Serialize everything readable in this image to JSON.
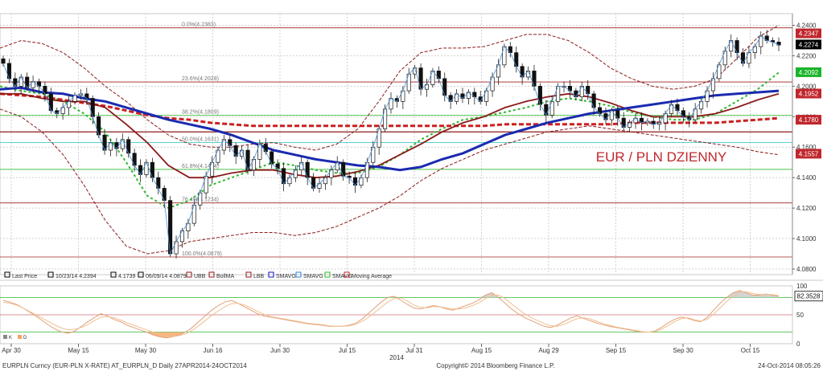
{
  "chart_data": [
    {
      "type": "candlestick",
      "title": "EUR / PLN DZIENNY",
      "ylim": [
        4.08,
        4.245
      ],
      "yticks": [
        4.08,
        4.1,
        4.12,
        4.14,
        4.16,
        4.18,
        4.2,
        4.22,
        4.24
      ],
      "ytick_labels": [
        "4.0800",
        "4.1000",
        "4.1200",
        "4.1400",
        "4.1600",
        "4.1800",
        "4.2000",
        "4.2200",
        "4.2400"
      ],
      "x_labels": [
        "Apr 30",
        "May 15",
        "May 30",
        "Jun 16",
        "Jun 30",
        "Jul 15",
        "Jul 31",
        "Aug 15",
        "Aug 29",
        "Sep 15",
        "Sep 30",
        "Oct 15"
      ],
      "year_label": "2014",
      "fib_levels": [
        {
          "label": "0.0%(4.2383)",
          "value": 4.2383
        },
        {
          "label": "23.6%(4.2028)",
          "value": 4.2028
        },
        {
          "label": "38.2%(4.1809)",
          "value": 4.1809
        },
        {
          "label": "50.0%(4.1631)",
          "value": 4.1631
        },
        {
          "label": "61.8%(4.1454)",
          "value": 4.1454
        },
        {
          "label": "76.4%(4.1234)",
          "value": 4.1234
        },
        {
          "label": "100.0%(4.0879)",
          "value": 4.0879
        }
      ],
      "horizontal_lines": [
        4.17
      ],
      "price_tags": [
        {
          "label": "4.2347",
          "value": 4.2347,
          "color": "#c0272d"
        },
        {
          "label": "4.2274",
          "value": 4.2274,
          "color": "#000000"
        },
        {
          "label": "4.2092",
          "value": 4.2092,
          "color": "#19b42a"
        },
        {
          "label": "4.1952",
          "value": 4.1952,
          "color": "#c0272d"
        },
        {
          "label": "4.1780",
          "value": 4.178,
          "color": "#c0272d"
        },
        {
          "label": "4.1557",
          "value": 4.1557,
          "color": "#c0272d"
        }
      ],
      "closes": [
        4.215,
        4.205,
        4.2,
        4.206,
        4.199,
        4.203,
        4.2,
        4.195,
        4.184,
        4.182,
        4.186,
        4.19,
        4.194,
        4.195,
        4.192,
        4.18,
        4.168,
        4.158,
        4.163,
        4.159,
        4.165,
        4.156,
        4.148,
        4.142,
        4.15,
        4.14,
        4.133,
        4.125,
        4.09,
        4.098,
        4.105,
        4.11,
        4.122,
        4.13,
        4.141,
        4.15,
        4.158,
        4.165,
        4.161,
        4.154,
        4.158,
        4.145,
        4.152,
        4.162,
        4.157,
        4.149,
        4.146,
        4.136,
        4.14,
        4.145,
        4.15,
        4.14,
        4.133,
        4.136,
        4.14,
        4.145,
        4.15,
        4.141,
        4.14,
        4.135,
        4.14,
        4.15,
        4.16,
        4.172,
        4.185,
        4.192,
        4.19,
        4.197,
        4.208,
        4.212,
        4.198,
        4.201,
        4.21,
        4.205,
        4.194,
        4.19,
        4.195,
        4.192,
        4.196,
        4.193,
        4.19,
        4.197,
        4.206,
        4.214,
        4.226,
        4.222,
        4.213,
        4.206,
        4.21,
        4.2,
        4.188,
        4.181,
        4.19,
        4.2,
        4.2,
        4.197,
        4.193,
        4.2,
        4.195,
        4.186,
        4.182,
        4.178,
        4.184,
        4.179,
        4.173,
        4.176,
        4.179,
        4.176,
        4.177,
        4.175,
        4.176,
        4.182,
        4.188,
        4.184,
        4.18,
        4.178,
        4.185,
        4.19,
        4.197,
        4.205,
        4.214,
        4.223,
        4.23,
        4.222,
        4.215,
        4.222,
        4.226,
        4.233,
        4.23,
        4.229,
        4.227
      ],
      "sma_blue": [
        4.198,
        4.199,
        4.196,
        4.195,
        4.192,
        4.19,
        4.186,
        4.182,
        4.178,
        4.175,
        4.172,
        4.168,
        4.163,
        4.158,
        4.155,
        4.152,
        4.15,
        4.148,
        4.147,
        4.145,
        4.147,
        4.152,
        4.156,
        4.162,
        4.168,
        4.172,
        4.176,
        4.179,
        4.182,
        4.184,
        4.186,
        4.188,
        4.19,
        4.192,
        4.194,
        4.195,
        4.196,
        4.197
      ],
      "ma_red": [
        4.195,
        4.195,
        4.192,
        4.19,
        4.19,
        4.186,
        4.175,
        4.163,
        4.148,
        4.14,
        4.14,
        4.143,
        4.145,
        4.145,
        4.142,
        4.14,
        4.141,
        4.144,
        4.148,
        4.155,
        4.162,
        4.17,
        4.176,
        4.18,
        4.186,
        4.19,
        4.193,
        4.195,
        4.193,
        4.189,
        4.184,
        4.18,
        4.18,
        4.18,
        4.182,
        4.186,
        4.191,
        4.195
      ],
      "ma_dashed_red": [
        4.195,
        4.194,
        4.193,
        4.191,
        4.189,
        4.187,
        4.184,
        4.181,
        4.179,
        4.178,
        4.176,
        4.175,
        4.174,
        4.174,
        4.174,
        4.174,
        4.174,
        4.174,
        4.174,
        4.174,
        4.174,
        4.174,
        4.174,
        4.174,
        4.175,
        4.175,
        4.175,
        4.175,
        4.175,
        4.175,
        4.176,
        4.176,
        4.176,
        4.176,
        4.176,
        4.177,
        4.178,
        4.179
      ],
      "ma_dotted_green": [
        4.2,
        4.197,
        4.195,
        4.19,
        4.182,
        4.17,
        4.15,
        4.128,
        4.12,
        4.125,
        4.135,
        4.14,
        4.145,
        4.15,
        4.148,
        4.145,
        4.143,
        4.143,
        4.147,
        4.155,
        4.165,
        4.172,
        4.178,
        4.18,
        4.183,
        4.186,
        4.19,
        4.192,
        4.19,
        4.187,
        4.183,
        4.18,
        4.178,
        4.178,
        4.182,
        4.19,
        4.198,
        4.209
      ],
      "bb_upper": [
        4.225,
        4.23,
        4.228,
        4.222,
        4.212,
        4.2,
        4.19,
        4.178,
        4.168,
        4.162,
        4.16,
        4.16,
        4.162,
        4.163,
        4.16,
        4.158,
        4.162,
        4.172,
        4.19,
        4.21,
        4.222,
        4.225,
        4.225,
        4.226,
        4.23,
        4.234,
        4.234,
        4.23,
        4.222,
        4.212,
        4.205,
        4.2,
        4.198,
        4.2,
        4.205,
        4.218,
        4.232,
        4.24
      ],
      "bb_lower": [
        4.185,
        4.18,
        4.17,
        4.155,
        4.135,
        4.112,
        4.095,
        4.09,
        4.092,
        4.098,
        4.1,
        4.102,
        4.104,
        4.104,
        4.102,
        4.104,
        4.108,
        4.114,
        4.12,
        4.128,
        4.138,
        4.146,
        4.152,
        4.158,
        4.162,
        4.166,
        4.17,
        4.172,
        4.174,
        4.172,
        4.17,
        4.168,
        4.166,
        4.164,
        4.162,
        4.16,
        4.157,
        4.155
      ]
    },
    {
      "type": "area",
      "ylim": [
        0,
        100
      ],
      "yticks": [
        0,
        50,
        100
      ],
      "ytick_labels": [
        "0",
        "50",
        "100"
      ],
      "price_tags": [
        {
          "label": "82.3528",
          "value": 82.3528
        }
      ],
      "k_values": [
        75,
        72,
        68,
        62,
        55,
        48,
        40,
        32,
        25,
        20,
        18,
        22,
        30,
        38,
        45,
        52,
        48,
        42,
        38,
        32,
        28,
        24,
        20,
        15,
        12,
        10,
        12,
        15,
        20,
        28,
        38,
        48,
        58,
        66,
        72,
        75,
        70,
        64,
        58,
        52,
        48,
        46,
        44,
        42,
        40,
        38,
        36,
        34,
        33,
        32,
        30,
        30,
        30,
        32,
        35,
        42,
        52,
        62,
        72,
        80,
        82,
        75,
        68,
        62,
        60,
        63,
        66,
        64,
        60,
        58,
        62,
        66,
        70,
        76,
        84,
        88,
        80,
        70,
        60,
        52,
        45,
        40,
        35,
        30,
        28,
        32,
        38,
        44,
        48,
        44,
        40,
        36,
        33,
        30,
        28,
        26,
        24,
        22,
        20,
        20,
        22,
        28,
        36,
        42,
        46,
        44,
        40,
        38,
        45,
        58,
        70,
        80,
        88,
        92,
        88,
        84,
        84,
        86,
        84,
        82
      ],
      "d_values": [
        72,
        70,
        67,
        62,
        56,
        50,
        44,
        38,
        32,
        27,
        24,
        25,
        28,
        33,
        40,
        46,
        47,
        45,
        41,
        36,
        32,
        28,
        24,
        20,
        16,
        13,
        12,
        14,
        17,
        23,
        31,
        40,
        49,
        57,
        64,
        69,
        70,
        67,
        62,
        56,
        51,
        47,
        45,
        43,
        41,
        39,
        37,
        35,
        34,
        33,
        31,
        30,
        30,
        31,
        33,
        38,
        45,
        54,
        63,
        72,
        78,
        79,
        74,
        67,
        63,
        62,
        64,
        64,
        62,
        60,
        60,
        62,
        66,
        71,
        78,
        84,
        84,
        78,
        69,
        60,
        52,
        45,
        40,
        35,
        31,
        30,
        33,
        38,
        43,
        45,
        43,
        39,
        35,
        32,
        29,
        27,
        25,
        23,
        21,
        20,
        21,
        25,
        31,
        38,
        43,
        45,
        42,
        39,
        42,
        51,
        62,
        73,
        82,
        89,
        90,
        87,
        85,
        85,
        85,
        83
      ]
    }
  ],
  "legend": {
    "items": [
      {
        "label": "Last Price",
        "color": "#000000"
      },
      {
        "label": "10/23/14 4.2394",
        "color": "#000000"
      },
      {
        "label": "4.1739",
        "color": "#000000"
      },
      {
        "label": "06/09/14 4.0879",
        "color": "#000000"
      },
      {
        "label": "UBB",
        "color": "#8b1a1a"
      },
      {
        "label": "BollMA",
        "color": "#8b1a1a"
      },
      {
        "label": "LBB",
        "color": "#8b1a1a"
      },
      {
        "label": "SMAVG",
        "color": "#1010c0"
      },
      {
        "label": "SMAVG",
        "color": "#3080e0"
      },
      {
        "label": "SMAVG",
        "color": "#2eb82e"
      },
      {
        "label": "Moving Average",
        "color": "#c0272d"
      }
    ]
  },
  "stoch_legend": {
    "k_label": "K",
    "d_label": "D"
  },
  "footer": {
    "left": "EURPLN Curncy (EUR-PLN X-RATE) AT_EURPLN_D  Daily 27APR2014-24OCT2014",
    "center": "Copyright© 2014 Bloomberg Finance L.P.",
    "right": "24-Oct-2014 08:05:26"
  },
  "colors": {
    "fib": "#a02020",
    "fib_green": "#2eb82e",
    "fib_cyan": "#20c0c0",
    "bollinger": "#8b1a1a",
    "sma_blue": "#1a2ab0",
    "ma_red": "#8b1a1a",
    "ma_dashed": "#cc1f1f",
    "ma_green": "#2eb82e",
    "title": "#c0272d"
  }
}
